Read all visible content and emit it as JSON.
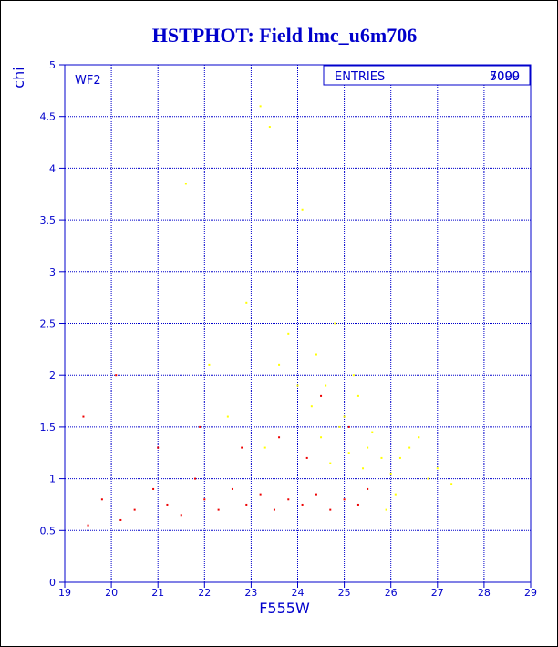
{
  "chart_data": {
    "type": "scatter",
    "title": "HSTPHOT: Field lmc_u6m706",
    "xlabel": "F555W",
    "ylabel": "chi",
    "xlim": [
      19,
      29
    ],
    "ylim": [
      0,
      5
    ],
    "x_ticks": [
      "19",
      "20",
      "21",
      "22",
      "23",
      "24",
      "25",
      "26",
      "27",
      "28",
      "29"
    ],
    "y_ticks": [
      "0",
      "0.5",
      "1",
      "1.5",
      "2",
      "2.5",
      "3",
      "3.5",
      "4",
      "4.5",
      "5"
    ],
    "grid": true,
    "panel_label": "WF2",
    "stats_box": {
      "label": "ENTRIES",
      "value_back": "7000",
      "value_front": "5099"
    },
    "series": [
      {
        "color": "#ffff00",
        "points": [
          [
            21.6,
            3.85
          ],
          [
            22.1,
            2.1
          ],
          [
            22.5,
            1.6
          ],
          [
            22.9,
            2.7
          ],
          [
            23.2,
            4.6
          ],
          [
            23.3,
            1.3
          ],
          [
            23.4,
            4.4
          ],
          [
            23.6,
            2.1
          ],
          [
            23.8,
            2.4
          ],
          [
            24.0,
            1.9
          ],
          [
            24.1,
            3.6
          ],
          [
            24.3,
            1.7
          ],
          [
            24.4,
            2.2
          ],
          [
            24.5,
            1.4
          ],
          [
            24.6,
            1.9
          ],
          [
            24.7,
            1.15
          ],
          [
            24.8,
            2.5
          ],
          [
            24.9,
            1.5
          ],
          [
            25.0,
            1.6
          ],
          [
            25.1,
            1.25
          ],
          [
            25.2,
            2.0
          ],
          [
            25.3,
            1.8
          ],
          [
            25.4,
            1.1
          ],
          [
            25.5,
            1.3
          ],
          [
            25.6,
            1.45
          ],
          [
            25.8,
            1.2
          ],
          [
            26.0,
            1.05
          ],
          [
            26.2,
            1.2
          ],
          [
            26.4,
            1.3
          ],
          [
            26.6,
            1.4
          ],
          [
            26.8,
            1.0
          ],
          [
            27.0,
            1.1
          ],
          [
            27.3,
            0.95
          ],
          [
            25.9,
            0.7
          ],
          [
            26.1,
            0.85
          ]
        ]
      },
      {
        "color": "#ee0000",
        "points": [
          [
            19.5,
            0.55
          ],
          [
            19.8,
            0.8
          ],
          [
            20.2,
            0.6
          ],
          [
            20.5,
            0.7
          ],
          [
            20.9,
            0.9
          ],
          [
            21.2,
            0.75
          ],
          [
            21.5,
            0.65
          ],
          [
            21.8,
            1.0
          ],
          [
            22.0,
            0.8
          ],
          [
            22.3,
            0.7
          ],
          [
            22.6,
            0.9
          ],
          [
            22.9,
            0.75
          ],
          [
            23.2,
            0.85
          ],
          [
            23.5,
            0.7
          ],
          [
            23.8,
            0.8
          ],
          [
            24.1,
            0.75
          ],
          [
            24.4,
            0.85
          ],
          [
            24.7,
            0.7
          ],
          [
            25.0,
            0.8
          ],
          [
            25.3,
            0.75
          ],
          [
            25.5,
            0.9
          ],
          [
            24.2,
            1.2
          ],
          [
            23.6,
            1.4
          ],
          [
            22.8,
            1.3
          ],
          [
            21.9,
            1.5
          ],
          [
            24.5,
            1.8
          ],
          [
            25.1,
            1.5
          ],
          [
            20.1,
            2.0
          ],
          [
            19.4,
            1.6
          ],
          [
            21.0,
            1.3
          ]
        ]
      }
    ]
  }
}
